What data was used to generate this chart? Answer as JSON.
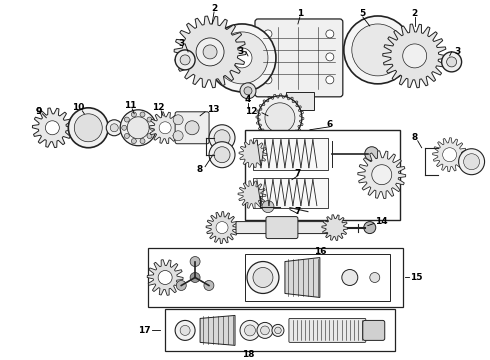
{
  "background_color": "#ffffff",
  "line_color": "#222222",
  "text_color": "#000000",
  "fig_width": 4.9,
  "fig_height": 3.6,
  "dpi": 100
}
